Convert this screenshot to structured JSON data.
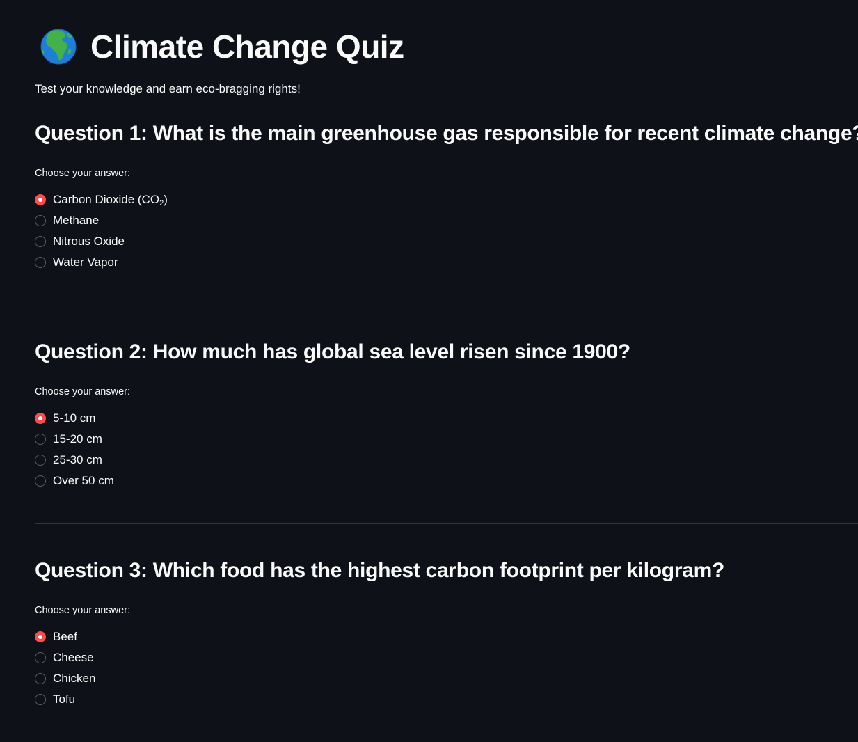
{
  "header": {
    "title": "Climate Change Quiz",
    "icon": "globe-africa-icon",
    "subtitle": "Test your knowledge and earn eco-bragging rights!"
  },
  "colors": {
    "background": "#0e1117",
    "text": "#fafafa",
    "accent": "#ff4b4b",
    "radio_border": "#5c5f66",
    "divider": "#31333f"
  },
  "questions": [
    {
      "heading": "Question 1: What is the main greenhouse gas responsible for recent climate change?",
      "label": "Choose your answer:",
      "selected_index": 0,
      "options": [
        "Carbon Dioxide (CO",
        "Methane",
        "Nitrous Oxide",
        "Water Vapor"
      ],
      "option_0_subscript": "2",
      "option_0_suffix": ")"
    },
    {
      "heading": "Question 2: How much has global sea level risen since 1900?",
      "label": "Choose your answer:",
      "selected_index": 0,
      "options": [
        "5-10 cm",
        "15-20 cm",
        "25-30 cm",
        "Over 50 cm"
      ]
    },
    {
      "heading": "Question 3: Which food has the highest carbon footprint per kilogram?",
      "label": "Choose your answer:",
      "selected_index": 0,
      "options": [
        "Beef",
        "Cheese",
        "Chicken",
        "Tofu"
      ]
    }
  ]
}
